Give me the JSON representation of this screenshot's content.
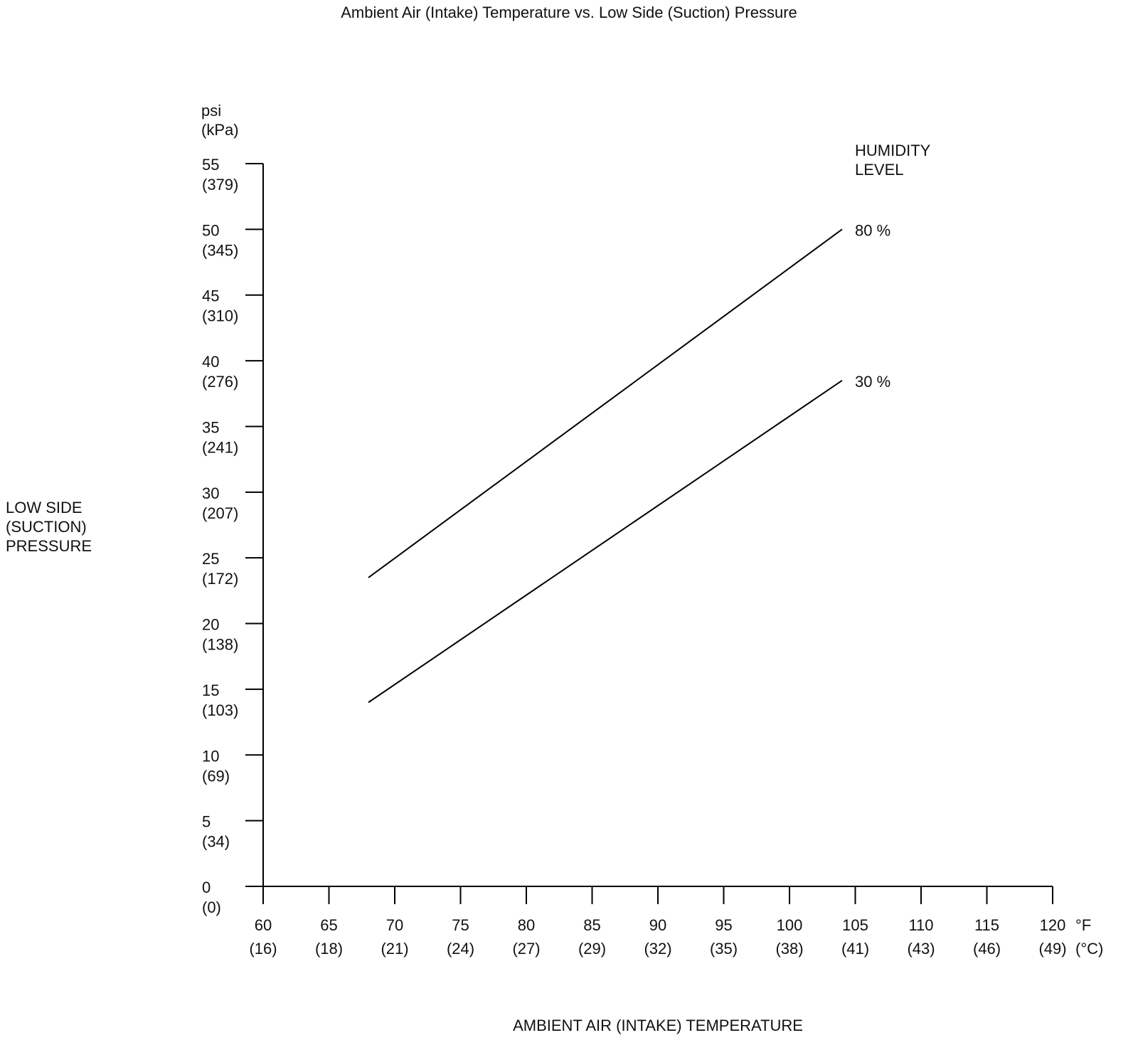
{
  "chart_data": {
    "type": "line",
    "title": "Ambient Air (Intake) Temperature vs. Low Side (Suction) Pressure",
    "xlabel": "AMBIENT AIR (INTAKE) TEMPERATURE",
    "ylabel": "LOW SIDE\n(SUCTION)\nPRESSURE",
    "y_unit_label": "psi\n(kPa)",
    "x_unit_primary": "°F",
    "x_unit_secondary": "(°C)",
    "legend_title": "HUMIDITY\nLEVEL",
    "legend_position": "top-right",
    "grid": false,
    "xlim": [
      60,
      120
    ],
    "ylim": [
      0,
      55
    ],
    "line_color": "#000000",
    "background_color": "#ffffff",
    "x_ticks": [
      {
        "value": 60,
        "label_f": "60",
        "label_c": "(16)"
      },
      {
        "value": 65,
        "label_f": "65",
        "label_c": "(18)"
      },
      {
        "value": 70,
        "label_f": "70",
        "label_c": "(21)"
      },
      {
        "value": 75,
        "label_f": "75",
        "label_c": "(24)"
      },
      {
        "value": 80,
        "label_f": "80",
        "label_c": "(27)"
      },
      {
        "value": 85,
        "label_f": "85",
        "label_c": "(29)"
      },
      {
        "value": 90,
        "label_f": "90",
        "label_c": "(32)"
      },
      {
        "value": 95,
        "label_f": "95",
        "label_c": "(35)"
      },
      {
        "value": 100,
        "label_f": "100",
        "label_c": "(38)"
      },
      {
        "value": 105,
        "label_f": "105",
        "label_c": "(41)"
      },
      {
        "value": 110,
        "label_f": "110",
        "label_c": "(43)"
      },
      {
        "value": 115,
        "label_f": "115",
        "label_c": "(46)"
      },
      {
        "value": 120,
        "label_f": "120",
        "label_c": "(49)"
      }
    ],
    "y_ticks": [
      {
        "value": 55,
        "label_psi": "55",
        "label_kpa": "(379)"
      },
      {
        "value": 50,
        "label_psi": "50",
        "label_kpa": "(345)"
      },
      {
        "value": 45,
        "label_psi": "45",
        "label_kpa": "(310)"
      },
      {
        "value": 40,
        "label_psi": "40",
        "label_kpa": "(276)"
      },
      {
        "value": 35,
        "label_psi": "35",
        "label_kpa": "(241)"
      },
      {
        "value": 30,
        "label_psi": "30",
        "label_kpa": "(207)"
      },
      {
        "value": 25,
        "label_psi": "25",
        "label_kpa": "(172)"
      },
      {
        "value": 20,
        "label_psi": "20",
        "label_kpa": "(138)"
      },
      {
        "value": 15,
        "label_psi": "15",
        "label_kpa": "(103)"
      },
      {
        "value": 10,
        "label_psi": "10",
        "label_kpa": "(69)"
      },
      {
        "value": 5,
        "label_psi": "5",
        "label_kpa": "(34)"
      },
      {
        "value": 0,
        "label_psi": "0",
        "label_kpa": "(0)"
      }
    ],
    "series": [
      {
        "name": "80 %",
        "humidity_percent": 80,
        "points": [
          [
            68,
            23.5
          ],
          [
            104,
            50
          ]
        ]
      },
      {
        "name": "30 %",
        "humidity_percent": 30,
        "points": [
          [
            68,
            14
          ],
          [
            104,
            38.5
          ]
        ]
      }
    ]
  }
}
